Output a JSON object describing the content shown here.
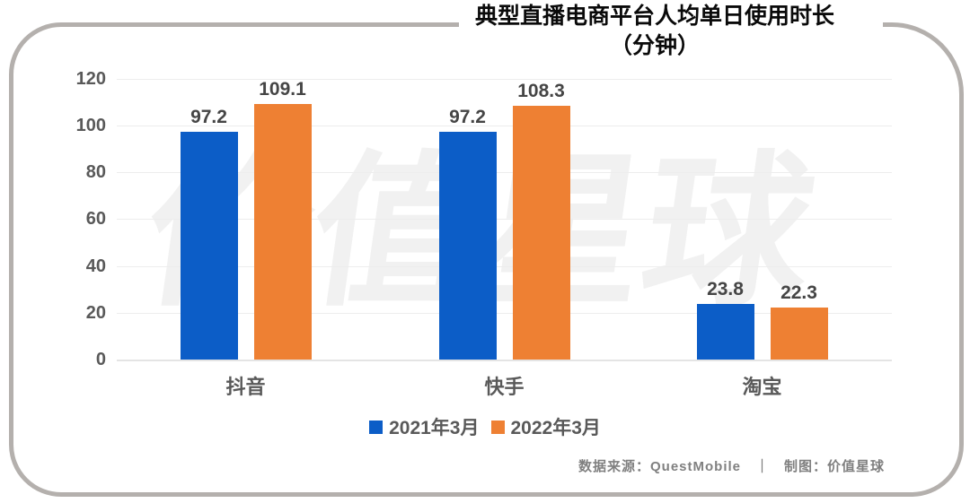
{
  "title": {
    "line1": "典型直播电商平台人均单日使用时长",
    "line2": "（分钟）"
  },
  "watermark": "价值星球",
  "chart_data": {
    "type": "bar",
    "title": "典型直播电商平台人均单日使用时长（分钟）",
    "categories": [
      "抖音",
      "快手",
      "淘宝"
    ],
    "series": [
      {
        "name": "2021年3月",
        "color": "#0c5dc7",
        "values": [
          97.2,
          97.2,
          23.8
        ]
      },
      {
        "name": "2022年3月",
        "color": "#ee8033",
        "values": [
          109.1,
          108.3,
          22.3
        ]
      }
    ],
    "value_labels": [
      [
        "97.2",
        "109.1"
      ],
      [
        "97.2",
        "108.3"
      ],
      [
        "23.8",
        "22.3"
      ]
    ],
    "ylim": [
      0,
      120
    ],
    "yticks": [
      0,
      20,
      40,
      60,
      80,
      100,
      120
    ],
    "grid": true,
    "legend_position": "bottom",
    "xlabel": "",
    "ylabel": ""
  },
  "footer": {
    "text": "数据来源：QuestMobile　｜　制图：价值星球"
  },
  "colors": {
    "series_2021": "#0c5dc7",
    "series_2022": "#ee8033",
    "card_border": "#b4b0ad",
    "axis_text": "#595959",
    "gridline": "#ededed",
    "watermark": "#f1f1f1",
    "footer_text": "#808080",
    "title_text": "#0a0a0a"
  }
}
